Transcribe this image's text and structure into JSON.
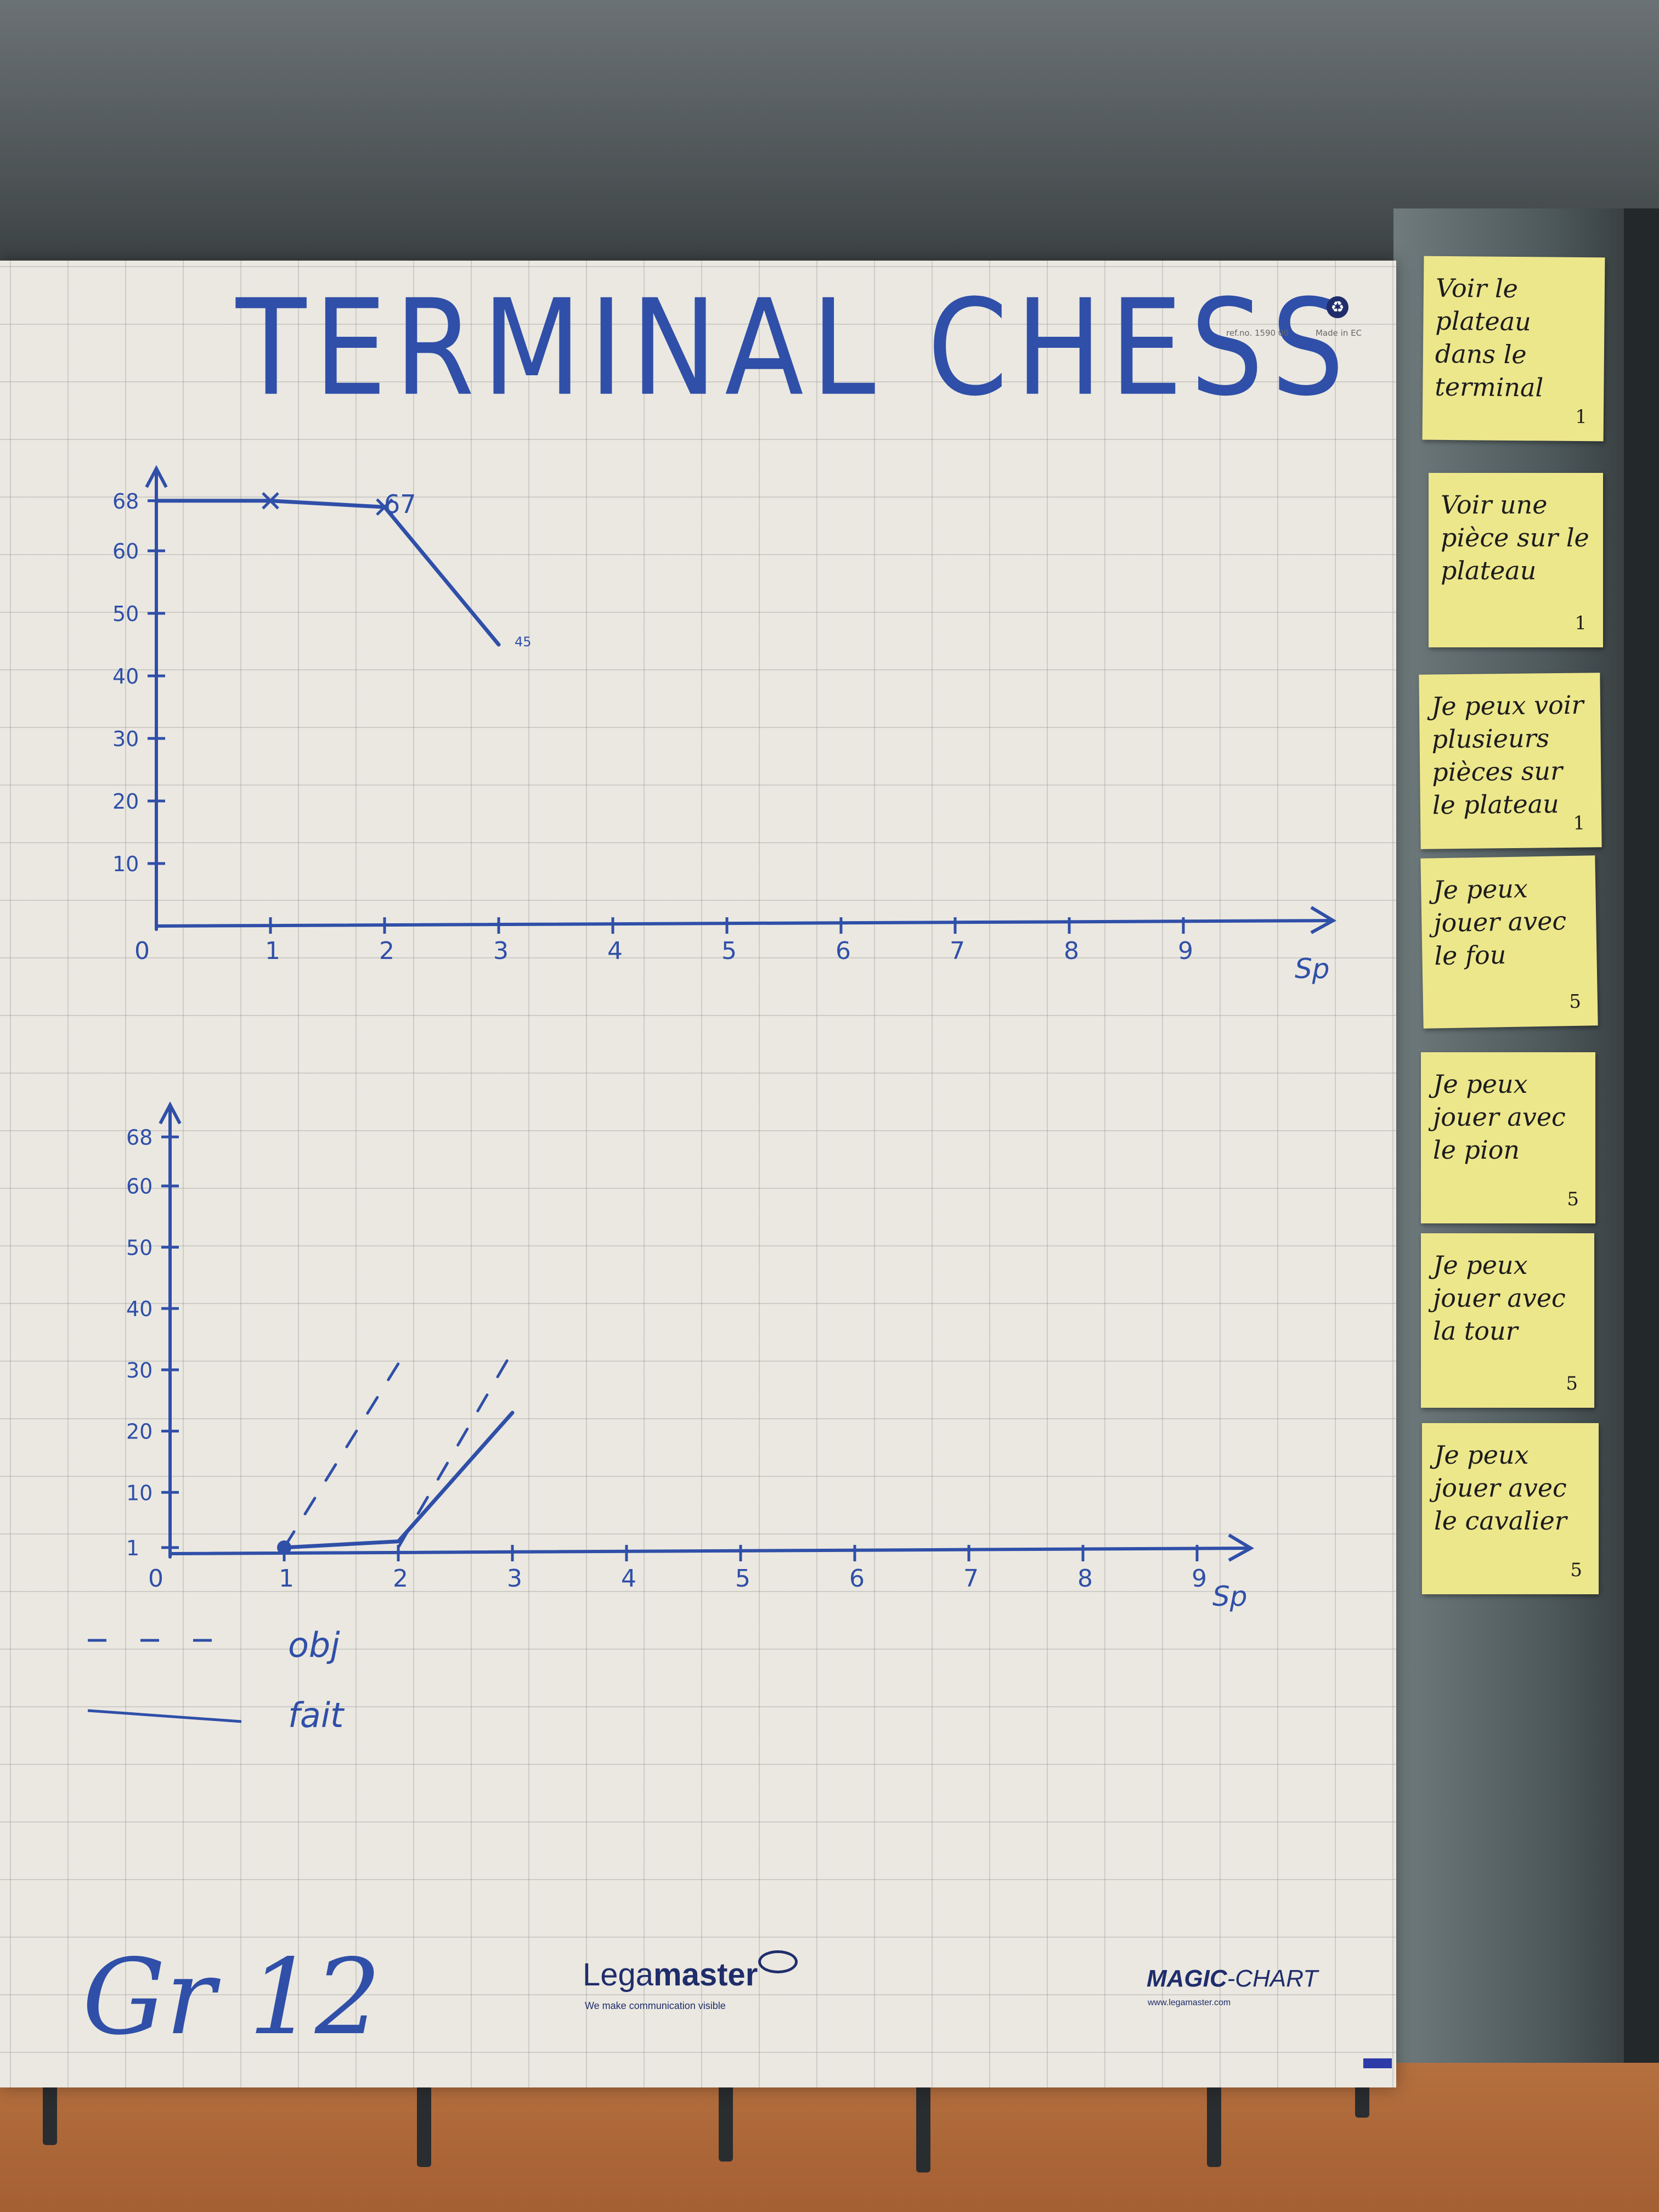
{
  "header": {
    "title": "TERMINAL CHESS",
    "ref": "ref.no. 1590 00",
    "made_in": "Made in EC"
  },
  "chart_data": [
    {
      "type": "line",
      "yticks": [
        10,
        20,
        30,
        40,
        50,
        60,
        68
      ],
      "xticks": [
        0,
        1,
        2,
        3,
        4,
        5,
        6,
        7,
        8,
        9
      ],
      "xlabel": "Sp",
      "xlim": [
        0,
        10
      ],
      "ylim": [
        0,
        70
      ],
      "series": [
        {
          "x": [
            0,
            1,
            2,
            3
          ],
          "values": [
            68,
            68,
            67,
            45
          ]
        }
      ],
      "annotations": [
        "67",
        "45"
      ]
    },
    {
      "type": "line",
      "yticks": [
        1,
        10,
        20,
        30,
        40,
        50,
        60,
        68
      ],
      "xticks": [
        0,
        1,
        2,
        3,
        4,
        5,
        6,
        7,
        8,
        9
      ],
      "xlabel": "Sp",
      "xlim": [
        0,
        10
      ],
      "ylim": [
        0,
        70
      ],
      "series": [
        {
          "name": "obj",
          "style": "dashed",
          "x": [
            1,
            2
          ],
          "values": [
            1,
            31
          ]
        },
        {
          "name": "obj",
          "style": "dashed",
          "x": [
            2,
            3
          ],
          "values": [
            1,
            33
          ]
        },
        {
          "name": "fait",
          "style": "solid",
          "x": [
            1,
            2,
            3
          ],
          "values": [
            1,
            2,
            23
          ]
        }
      ],
      "legend": [
        {
          "label": "obj",
          "style": "dashed"
        },
        {
          "label": "fait",
          "style": "solid"
        }
      ]
    }
  ],
  "footer": {
    "group": "Gr 12",
    "brand_light": "Lega",
    "brand_bold": "master",
    "tagline": "We make communication visible",
    "product_bold": "MAGIC",
    "product_rest": "-CHART",
    "url": "www.legamaster.com"
  },
  "stickies": [
    {
      "text": "Voir le plateau dans le terminal",
      "points": "1"
    },
    {
      "text": "Voir une pièce sur le plateau",
      "points": "1"
    },
    {
      "text": "Je peux voir plusieurs pièces sur le plateau",
      "points": "1"
    },
    {
      "text": "Je peux jouer avec le fou",
      "points": "5"
    },
    {
      "text": "Je peux jouer avec le pion",
      "points": "5"
    },
    {
      "text": "Je peux jouer avec la tour",
      "points": "5"
    },
    {
      "text": "Je peux jouer avec le cavalier",
      "points": "5"
    }
  ],
  "colors": {
    "ink": "#2f4fa8",
    "sticky": "#ede78c"
  }
}
